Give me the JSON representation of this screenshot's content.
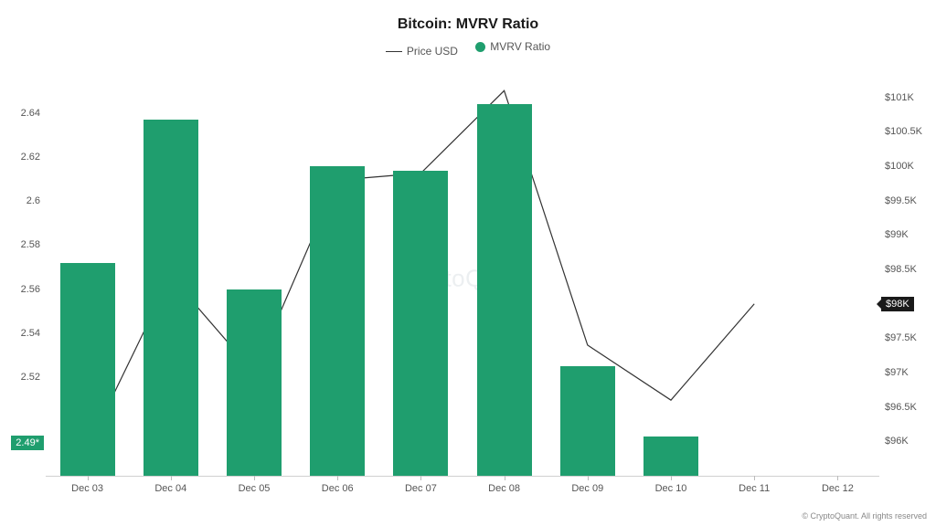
{
  "title": "Bitcoin: MVRV Ratio",
  "legend": {
    "line_label": "Price USD",
    "bar_label": "MVRV Ratio"
  },
  "watermark": "CryptoQuant",
  "credit": "© CryptoQuant. All rights reserved",
  "colors": {
    "bar": "#1f9e6e",
    "line": "#333333",
    "axis_text": "#555555",
    "grid": "#d0d0d0",
    "left_marker_bg": "#1f9e6e",
    "right_marker_bg": "#1a1a1a",
    "background": "#ffffff"
  },
  "typography": {
    "title_fontsize": 16,
    "title_weight": 700,
    "axis_fontsize": 11,
    "legend_fontsize": 12
  },
  "chart": {
    "type": "bar+line",
    "x_categories": [
      "Dec 03",
      "Dec 04",
      "Dec 05",
      "Dec 06",
      "Dec 07",
      "Dec 08",
      "Dec 09",
      "Dec 10",
      "Dec 11",
      "Dec 12"
    ],
    "bars": {
      "values": [
        2.572,
        2.637,
        2.56,
        2.616,
        2.614,
        2.644,
        2.525,
        2.493,
        null,
        null
      ],
      "axis": "left",
      "width_frac": 0.66
    },
    "line": {
      "values": [
        95.9,
        98.4,
        97.0,
        99.8,
        99.9,
        101.1,
        97.4,
        96.6,
        98.0,
        null
      ],
      "axis": "right",
      "stroke_width": 1.2
    },
    "left_axis": {
      "min": 2.475,
      "max": 2.655,
      "ticks": [
        2.52,
        2.54,
        2.56,
        2.58,
        2.6,
        2.62,
        2.64
      ],
      "tick_labels": [
        "2.52",
        "2.54",
        "2.56",
        "2.58",
        "2.6",
        "2.62",
        "2.64"
      ]
    },
    "right_axis": {
      "min": 95.5,
      "max": 101.25,
      "ticks": [
        96,
        96.5,
        97,
        97.5,
        98,
        98.5,
        99,
        99.5,
        100,
        100.5,
        101
      ],
      "tick_labels": [
        "$96K",
        "$96.5K",
        "$97K",
        "$97.5K",
        "$98K",
        "$98.5K",
        "$99K",
        "$99.5K",
        "$100K",
        "$100.5K",
        "$101K"
      ]
    },
    "left_marker": {
      "value": 2.49,
      "label": "2.49*"
    },
    "right_marker": {
      "value": 98.0,
      "label": "$98K"
    }
  }
}
